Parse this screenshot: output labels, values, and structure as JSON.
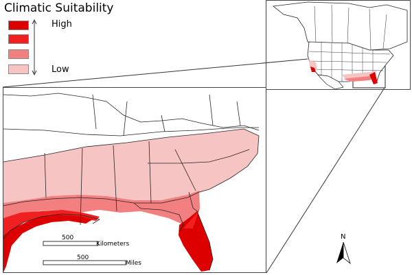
{
  "legend": {
    "title": "Climatic Suitability",
    "high_label": "High",
    "low_label": "Low",
    "colors": [
      "#dd0000",
      "#f02020",
      "#f28080",
      "#f7c4c4"
    ]
  },
  "scalebar": {
    "km_value": "500",
    "km_unit": "Kilometers",
    "mi_value": "500",
    "mi_unit": "Miles"
  },
  "north_arrow": {
    "label": "N"
  },
  "map": {
    "main_region": "Southeastern United States",
    "inset_region": "North America"
  }
}
